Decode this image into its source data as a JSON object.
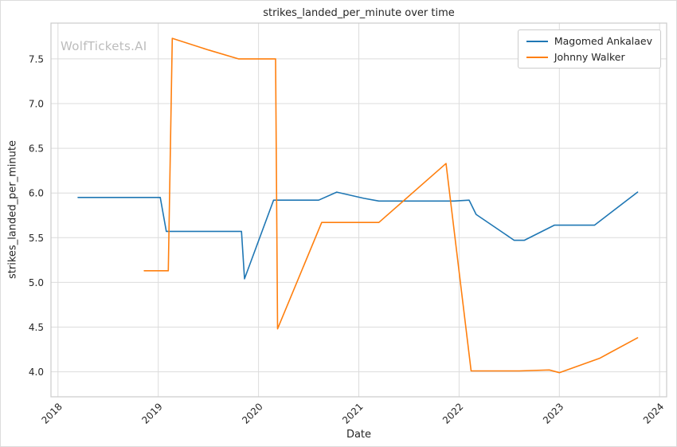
{
  "watermark": {
    "text": "WolfTickets.AI"
  },
  "chart_data": {
    "type": "line",
    "title": "strikes_landed_per_minute over time",
    "xlabel": "Date",
    "ylabel": "strikes_landed_per_minute",
    "xlim": [
      2017.93,
      2024.07
    ],
    "ylim": [
      3.72,
      7.9
    ],
    "xtick_values": [
      2018,
      2019,
      2020,
      2021,
      2022,
      2023,
      2024
    ],
    "xtick_labels": [
      "2018",
      "2019",
      "2020",
      "2021",
      "2022",
      "2023",
      "2024"
    ],
    "ytick_values": [
      4.0,
      4.5,
      5.0,
      5.5,
      6.0,
      6.5,
      7.0,
      7.5
    ],
    "ytick_labels": [
      "4.0",
      "4.5",
      "5.0",
      "5.5",
      "6.0",
      "6.5",
      "7.0",
      "7.5"
    ],
    "grid": true,
    "legend_position": "top-right",
    "series": [
      {
        "name": "Magomed Ankalaev",
        "color": "#1f77b4",
        "points": [
          [
            2018.2,
            5.95
          ],
          [
            2019.02,
            5.95
          ],
          [
            2019.08,
            5.57
          ],
          [
            2019.83,
            5.57
          ],
          [
            2019.86,
            5.04
          ],
          [
            2020.15,
            5.92
          ],
          [
            2020.6,
            5.92
          ],
          [
            2020.78,
            6.01
          ],
          [
            2021.05,
            5.94
          ],
          [
            2021.2,
            5.91
          ],
          [
            2021.95,
            5.91
          ],
          [
            2022.1,
            5.92
          ],
          [
            2022.17,
            5.76
          ],
          [
            2022.55,
            5.47
          ],
          [
            2022.65,
            5.47
          ],
          [
            2022.95,
            5.64
          ],
          [
            2023.35,
            5.64
          ],
          [
            2023.78,
            6.01
          ]
        ]
      },
      {
        "name": "Johnny Walker",
        "color": "#ff7f0e",
        "points": [
          [
            2018.86,
            5.13
          ],
          [
            2019.1,
            5.13
          ],
          [
            2019.14,
            7.73
          ],
          [
            2019.5,
            7.6
          ],
          [
            2019.8,
            7.5
          ],
          [
            2020.17,
            7.5
          ],
          [
            2020.19,
            4.48
          ],
          [
            2020.63,
            5.67
          ],
          [
            2021.2,
            5.67
          ],
          [
            2021.87,
            6.33
          ],
          [
            2022.12,
            4.01
          ],
          [
            2022.6,
            4.01
          ],
          [
            2022.9,
            4.02
          ],
          [
            2023.0,
            3.99
          ],
          [
            2023.4,
            4.15
          ],
          [
            2023.78,
            4.38
          ]
        ]
      }
    ]
  }
}
